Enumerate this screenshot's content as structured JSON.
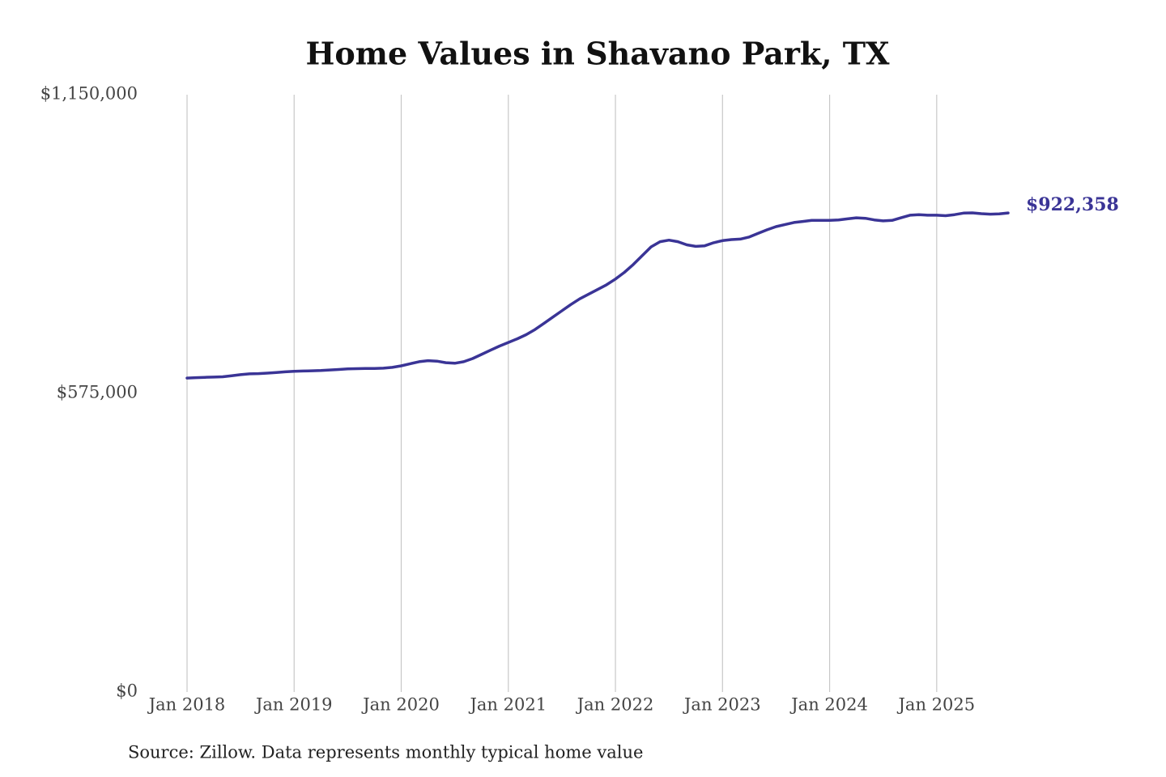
{
  "chart_data": {
    "type": "line",
    "title": "Home Values in Shavano Park, TX",
    "source": "Source: Zillow. Data represents monthly typical home value",
    "x": [
      "2018-01",
      "2018-02",
      "2018-03",
      "2018-04",
      "2018-05",
      "2018-06",
      "2018-07",
      "2018-08",
      "2018-09",
      "2018-10",
      "2018-11",
      "2018-12",
      "2019-01",
      "2019-02",
      "2019-03",
      "2019-04",
      "2019-05",
      "2019-06",
      "2019-07",
      "2019-08",
      "2019-09",
      "2019-10",
      "2019-11",
      "2019-12",
      "2020-01",
      "2020-02",
      "2020-03",
      "2020-04",
      "2020-05",
      "2020-06",
      "2020-07",
      "2020-08",
      "2020-09",
      "2020-10",
      "2020-11",
      "2020-12",
      "2021-01",
      "2021-02",
      "2021-03",
      "2021-04",
      "2021-05",
      "2021-06",
      "2021-07",
      "2021-08",
      "2021-09",
      "2021-10",
      "2021-11",
      "2021-12",
      "2022-01",
      "2022-02",
      "2022-03",
      "2022-04",
      "2022-05",
      "2022-06",
      "2022-07",
      "2022-08",
      "2022-09",
      "2022-10",
      "2022-11",
      "2022-12",
      "2023-01",
      "2023-02",
      "2023-03",
      "2023-04",
      "2023-05",
      "2023-06",
      "2023-07",
      "2023-08",
      "2023-09",
      "2023-10",
      "2023-11",
      "2023-12",
      "2024-01",
      "2024-02",
      "2024-03",
      "2024-04",
      "2024-05",
      "2024-06",
      "2024-07",
      "2024-08",
      "2024-09",
      "2024-10",
      "2024-11",
      "2024-12",
      "2025-01",
      "2025-02",
      "2025-03",
      "2025-04",
      "2025-05",
      "2025-06",
      "2025-07",
      "2025-08",
      "2025-09"
    ],
    "values": [
      604500,
      605200,
      605800,
      606300,
      607000,
      609000,
      611000,
      612500,
      613000,
      614000,
      615000,
      616500,
      617500,
      618000,
      618500,
      619000,
      620000,
      621000,
      622000,
      622500,
      623000,
      623000,
      623500,
      625000,
      628000,
      632000,
      636000,
      638000,
      637000,
      634000,
      633000,
      636000,
      642000,
      650000,
      658000,
      666000,
      673000,
      680000,
      688000,
      698000,
      710000,
      722000,
      734000,
      746000,
      757000,
      766000,
      775000,
      784000,
      795000,
      808000,
      823000,
      840000,
      857000,
      867000,
      870000,
      867000,
      861000,
      858000,
      859000,
      865000,
      869000,
      871000,
      872000,
      876000,
      883000,
      890000,
      896000,
      900000,
      904000,
      906000,
      908000,
      908000,
      908000,
      909000,
      911000,
      913000,
      912000,
      909000,
      907000,
      908000,
      913000,
      918000,
      919000,
      918000,
      918000,
      917000,
      919000,
      922000,
      922500,
      921000,
      920000,
      920500,
      922358
    ],
    "value_labels": [
      null,
      null,
      null,
      null,
      null,
      null,
      null,
      null,
      null,
      null,
      null,
      null,
      null,
      null,
      null,
      null,
      null,
      null,
      null,
      null,
      null,
      null,
      null,
      null,
      null,
      null,
      null,
      null,
      null,
      null,
      null,
      null,
      null,
      null,
      null,
      null,
      null,
      null,
      null,
      null,
      null,
      null,
      null,
      null,
      null,
      null,
      null,
      null,
      null,
      null,
      null,
      null,
      null,
      null,
      null,
      null,
      null,
      null,
      null,
      null,
      null,
      null,
      null,
      null,
      null,
      null,
      null,
      null,
      null,
      null,
      null,
      null,
      null,
      null,
      null,
      null,
      null,
      null,
      null,
      null,
      null,
      null,
      null,
      null,
      null,
      null,
      null,
      null,
      null,
      null,
      null,
      null,
      "$922,358"
    ],
    "color": "#3a3496",
    "ylim": [
      0,
      1150000
    ],
    "yticks": [
      {
        "value": 0,
        "label": "$0"
      },
      {
        "value": 575000,
        "label": "$575,000"
      },
      {
        "value": 1150000,
        "label": "$1,150,000"
      }
    ],
    "xticks": [
      {
        "value": "2018-01",
        "label": "Jan 2018"
      },
      {
        "value": "2019-01",
        "label": "Jan 2019"
      },
      {
        "value": "2020-01",
        "label": "Jan 2020"
      },
      {
        "value": "2021-01",
        "label": "Jan 2021"
      },
      {
        "value": "2022-01",
        "label": "Jan 2022"
      },
      {
        "value": "2023-01",
        "label": "Jan 2023"
      },
      {
        "value": "2024-01",
        "label": "Jan 2024"
      },
      {
        "value": "2025-01",
        "label": "Jan 2025"
      }
    ],
    "grid": "x"
  }
}
